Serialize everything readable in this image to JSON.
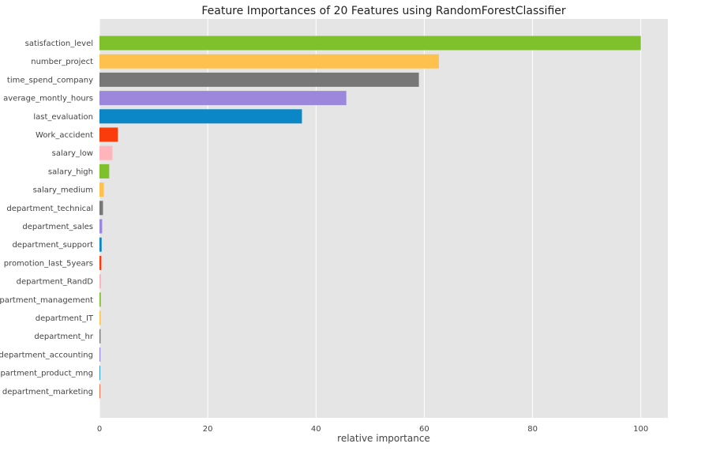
{
  "chart_data": {
    "type": "bar",
    "orientation": "horizontal",
    "title": "Feature Importances of 20 Features using RandomForestClassifier",
    "xlabel": "relative importance",
    "ylabel": "",
    "xlim": [
      0,
      105
    ],
    "xticks": [
      0,
      20,
      40,
      60,
      80,
      100
    ],
    "grid": true,
    "background": "#e5e5e5",
    "categories": [
      "satisfaction_level",
      "number_project",
      "time_spend_company",
      "average_montly_hours",
      "last_evaluation",
      "Work_accident",
      "salary_low",
      "salary_high",
      "salary_medium",
      "department_technical",
      "department_sales",
      "department_support",
      "promotion_last_5years",
      "department_RandD",
      "department_management",
      "department_IT",
      "department_hr",
      "department_accounting",
      "department_product_mng",
      "department_marketing"
    ],
    "values": [
      100,
      62.7,
      59.0,
      45.6,
      37.4,
      3.4,
      2.4,
      1.8,
      0.8,
      0.65,
      0.5,
      0.4,
      0.35,
      0.3,
      0.25,
      0.22,
      0.2,
      0.18,
      0.12,
      0.1
    ],
    "colors": [
      "#7fc12c",
      "#ffc14d",
      "#777777",
      "#9b88dc",
      "#0b87c8",
      "#fa3c0c",
      "#ffb5bb"
    ]
  }
}
